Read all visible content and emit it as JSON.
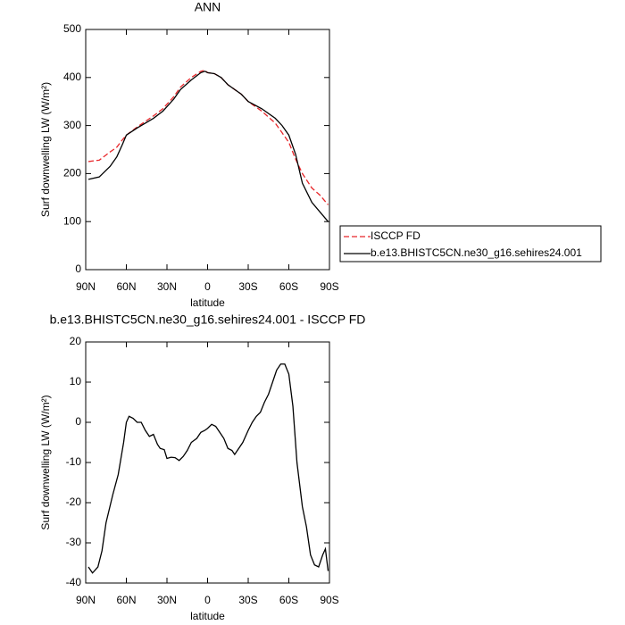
{
  "chart_data": [
    {
      "type": "line",
      "title": "ANN",
      "xlabel": "latitude",
      "ylabel": "Surf downwelling LW (W/m²)",
      "x": [
        88,
        80,
        72,
        67,
        63,
        60,
        52,
        40,
        33,
        25,
        20,
        12,
        5,
        2,
        0,
        -5,
        -10,
        -15,
        -25,
        -30,
        -40,
        -50,
        -55,
        -60,
        -65,
        -70,
        -77,
        -83,
        -89
      ],
      "series": [
        {
          "name": "ISCCP FD",
          "color": "#e8262a",
          "line_style": "dashed",
          "values": [
            225,
            228,
            245,
            255,
            270,
            280,
            297,
            320,
            335,
            360,
            380,
            400,
            413,
            415,
            410,
            408,
            400,
            385,
            365,
            350,
            330,
            305,
            285,
            265,
            230,
            200,
            170,
            155,
            135
          ]
        },
        {
          "name": "b.e13.BHISTC5CN.ne30_g16.sehires24.001",
          "color": "#000000",
          "line_style": "solid",
          "values": [
            188,
            193,
            215,
            235,
            260,
            280,
            295,
            315,
            330,
            355,
            375,
            395,
            410,
            413,
            410,
            408,
            400,
            385,
            365,
            350,
            335,
            315,
            300,
            280,
            240,
            180,
            140,
            120,
            100
          ]
        }
      ],
      "xlim": [
        90,
        -90
      ],
      "xticks": [
        {
          "value": 90,
          "label": "90N"
        },
        {
          "value": 60,
          "label": "60N"
        },
        {
          "value": 30,
          "label": "30N"
        },
        0,
        {
          "value": -30,
          "label": "30S"
        },
        {
          "value": -60,
          "label": "60S"
        },
        {
          "value": -90,
          "label": "90S"
        }
      ],
      "ylim": [
        0,
        500
      ],
      "yticks": [
        0,
        100,
        200,
        300,
        400,
        500
      ]
    },
    {
      "type": "line",
      "title": "b.e13.BHISTC5CN.ne30_g16.sehires24.001 - ISCCP FD",
      "xlabel": "latitude",
      "ylabel": "Surf downwelling LW (W/m²)",
      "x": [
        88,
        85,
        81,
        78,
        75,
        70,
        66,
        62,
        60,
        58,
        55,
        52,
        49,
        46,
        43,
        40,
        37,
        35,
        32,
        30,
        27,
        24,
        21,
        18,
        15,
        12,
        8,
        5,
        2,
        0,
        -3,
        -6,
        -9,
        -12,
        -15,
        -18,
        -20,
        -23,
        -26,
        -30,
        -33,
        -36,
        -39,
        -42,
        -45,
        -48,
        -51,
        -54,
        -57,
        -60,
        -63,
        -66,
        -70,
        -73,
        -76,
        -79,
        -82,
        -85,
        -87,
        -89
      ],
      "series": [
        {
          "color": "#000000",
          "line_style": "solid",
          "values": [
            -36,
            -37.5,
            -36,
            -32,
            -25,
            -18,
            -13,
            -5,
            0,
            1.5,
            1,
            0,
            0,
            -2,
            -3.5,
            -3,
            -5.5,
            -6.5,
            -6.8,
            -9,
            -8.7,
            -8.8,
            -9.5,
            -8.5,
            -7,
            -5,
            -4,
            -2.5,
            -2,
            -1.5,
            -0.5,
            -1,
            -2.5,
            -4,
            -6.5,
            -7,
            -8,
            -6.5,
            -5,
            -2,
            0,
            1.5,
            2.5,
            5,
            7,
            10,
            13,
            14.5,
            14.5,
            12,
            4,
            -10,
            -21,
            -26,
            -33,
            -35.5,
            -36,
            -33,
            -31.5,
            -37
          ]
        }
      ],
      "xlim": [
        90,
        -90
      ],
      "xticks": [
        {
          "value": 90,
          "label": "90N"
        },
        {
          "value": 60,
          "label": "60N"
        },
        {
          "value": 30,
          "label": "30N"
        },
        0,
        {
          "value": -30,
          "label": "30S"
        },
        {
          "value": -60,
          "label": "60S"
        },
        {
          "value": -90,
          "label": "90S"
        }
      ],
      "ylim": [
        -40,
        20
      ],
      "yticks": [
        -40,
        -30,
        -20,
        -10,
        0,
        10,
        20
      ]
    }
  ]
}
